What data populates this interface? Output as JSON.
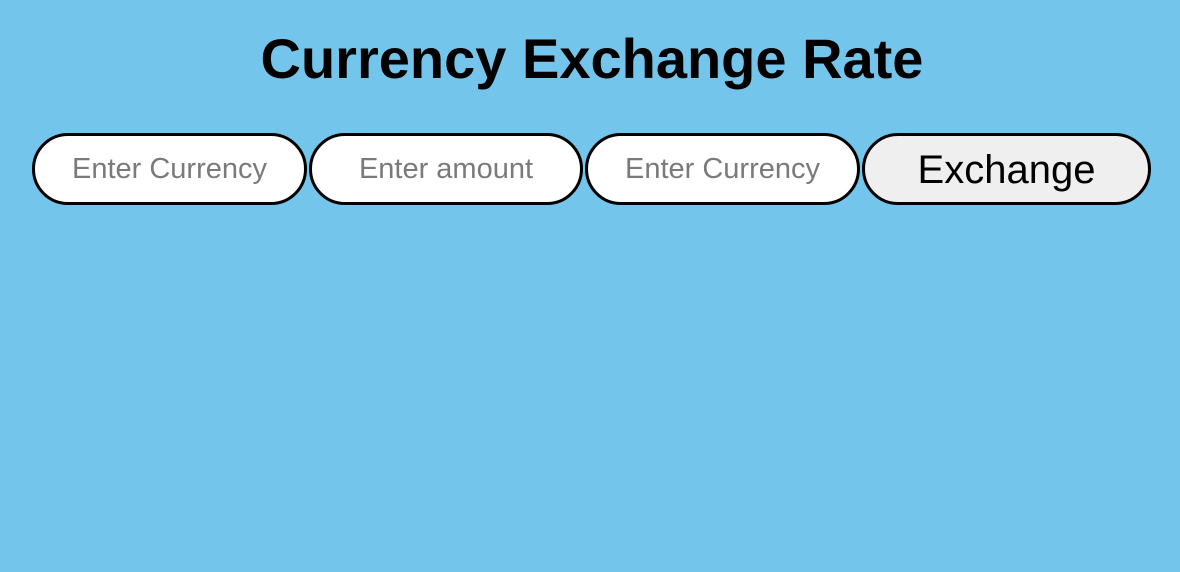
{
  "page": {
    "title": "Currency Exchange Rate"
  },
  "form": {
    "from_currency": {
      "value": "",
      "placeholder": "Enter Currency"
    },
    "amount": {
      "value": "",
      "placeholder": "Enter amount"
    },
    "to_currency": {
      "value": "",
      "placeholder": "Enter Currency"
    },
    "exchange_label": "Exchange"
  },
  "colors": {
    "background": "#74c5eb",
    "input_background": "#ffffff",
    "button_background": "#efefef",
    "border": "#000000",
    "placeholder_text": "#7a7a7a"
  }
}
